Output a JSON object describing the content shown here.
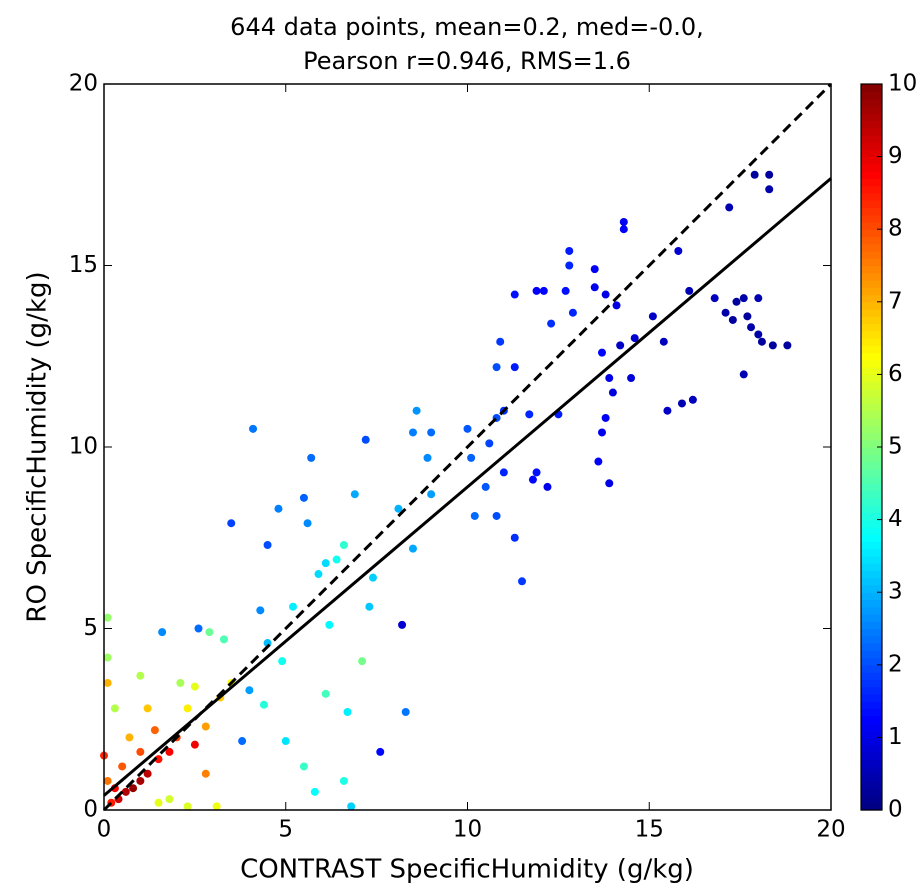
{
  "chart_data": {
    "type": "scatter",
    "title": [
      "644 data points, mean=0.2, med=-0.0,",
      "Pearson r=0.946,  RMS=1.6"
    ],
    "xlabel": "CONTRAST SpecificHumidity (g/kg)",
    "ylabel": "RO SpecificHumidity (g/kg)",
    "xlim": [
      0,
      20
    ],
    "ylim": [
      0,
      20
    ],
    "xticks": [
      0,
      5,
      10,
      15,
      20
    ],
    "yticks": [
      0,
      5,
      10,
      15,
      20
    ],
    "colormap": "jet",
    "colorbar": {
      "lim": [
        0,
        10
      ],
      "ticks": [
        0,
        1,
        2,
        3,
        4,
        5,
        6,
        7,
        8,
        9,
        10
      ]
    },
    "x": [
      17.2,
      17.9,
      18.3,
      18.3,
      16.8,
      17.1,
      17.3,
      17.4,
      17.6,
      17.7,
      17.8,
      18.0,
      18.0,
      18.1,
      18.4,
      18.8,
      17.6,
      16.1,
      16.2,
      15.9,
      15.5,
      15.4,
      15.1,
      14.6,
      14.5,
      14.2,
      14.1,
      14.3,
      14.3,
      15.8,
      13.5,
      13.5,
      13.8,
      13.7,
      13.9,
      14.0,
      13.8,
      13.7,
      13.9,
      13.6,
      12.8,
      12.8,
      12.7,
      12.9,
      12.3,
      12.1,
      11.9,
      12.5,
      12.2,
      11.9,
      11.8,
      11.7,
      11.5,
      11.3,
      11.3,
      10.9,
      10.8,
      11.0,
      11.0,
      10.8,
      10.6,
      10.5,
      10.8,
      10.1,
      10.2,
      10.0,
      11.3,
      9.0,
      8.6,
      8.5,
      8.9,
      9.0,
      8.5,
      8.1,
      8.2,
      8.3,
      7.6,
      7.2,
      6.9,
      7.3,
      7.4,
      6.6,
      6.4,
      6.1,
      5.7,
      5.5,
      5.6,
      5.9,
      5.2,
      4.8,
      4.5,
      4.1,
      3.5,
      4.3,
      4.5,
      3.3,
      4.0,
      3.8,
      4.4,
      5.0,
      5.5,
      5.8,
      6.1,
      6.7,
      6.8,
      6.6,
      7.1,
      6.2,
      4.9,
      2.6,
      1.6,
      2.9,
      2.5,
      2.3,
      3.2,
      3.5,
      2.8,
      2.0,
      1.8,
      1.5,
      1.2,
      1.0,
      0.8,
      0.6,
      0.4,
      0.3,
      0.2,
      0.5,
      1.0,
      1.4,
      0.7,
      0.3,
      0.1,
      0.1,
      0.1,
      1.0,
      1.8,
      1.5,
      2.3,
      3.1,
      2.8,
      1.2,
      2.1,
      0.0,
      0.1,
      2.5
    ],
    "y": [
      16.6,
      17.5,
      17.5,
      17.1,
      14.1,
      13.7,
      13.5,
      14.0,
      14.1,
      13.6,
      13.3,
      14.1,
      13.1,
      12.9,
      12.8,
      12.8,
      12.0,
      14.3,
      11.3,
      11.2,
      11.0,
      12.9,
      13.6,
      13.0,
      11.9,
      12.8,
      13.9,
      16.2,
      16.0,
      15.4,
      14.9,
      14.4,
      14.2,
      12.6,
      11.9,
      11.5,
      10.8,
      10.4,
      9.0,
      9.6,
      15.4,
      15.0,
      14.3,
      13.7,
      13.4,
      14.3,
      14.3,
      10.9,
      8.9,
      9.3,
      9.1,
      10.9,
      6.3,
      7.5,
      12.2,
      12.9,
      12.2,
      11.0,
      9.3,
      10.8,
      10.1,
      8.9,
      8.1,
      9.7,
      8.1,
      10.5,
      14.2,
      10.4,
      11.0,
      10.4,
      9.7,
      8.7,
      7.2,
      8.3,
      5.1,
      2.7,
      1.6,
      10.2,
      8.7,
      5.6,
      6.4,
      7.3,
      6.9,
      6.8,
      9.7,
      8.6,
      7.9,
      6.5,
      5.6,
      8.3,
      7.3,
      10.5,
      7.9,
      5.5,
      4.6,
      4.7,
      3.3,
      1.9,
      2.9,
      1.9,
      1.2,
      0.5,
      3.2,
      2.7,
      0.1,
      0.8,
      4.1,
      5.1,
      4.1,
      5.0,
      4.9,
      4.9,
      3.4,
      2.8,
      3.1,
      3.5,
      2.3,
      2.0,
      1.6,
      1.4,
      1.0,
      0.8,
      0.6,
      0.5,
      0.3,
      0.6,
      0.2,
      1.2,
      1.6,
      2.2,
      2.0,
      2.8,
      4.2,
      5.3,
      3.5,
      3.7,
      0.3,
      0.2,
      0.1,
      0.1,
      1.0,
      2.8,
      3.5,
      1.5,
      0.8,
      1.8
    ],
    "c": [
      0.5,
      0.3,
      0.3,
      0.4,
      0.6,
      0.4,
      0.3,
      0.3,
      0.4,
      0.3,
      0.4,
      0.5,
      0.4,
      0.3,
      0.3,
      0.3,
      0.5,
      0.5,
      0.6,
      0.5,
      0.7,
      0.6,
      0.7,
      0.8,
      0.9,
      0.7,
      1.0,
      1.1,
      1.2,
      0.8,
      1.2,
      1.1,
      1.0,
      1.3,
      1.0,
      0.9,
      1.2,
      1.1,
      1.0,
      1.2,
      1.5,
      1.6,
      1.4,
      1.6,
      1.7,
      1.3,
      1.2,
      1.5,
      1.1,
      1.4,
      1.3,
      1.6,
      1.8,
      1.7,
      1.5,
      1.8,
      2.0,
      1.7,
      1.6,
      2.0,
      1.9,
      2.1,
      2.0,
      2.2,
      2.3,
      2.1,
      1.4,
      2.3,
      2.7,
      2.5,
      2.6,
      2.8,
      2.9,
      3.0,
      0.8,
      2.4,
      1.3,
      2.0,
      2.9,
      3.2,
      3.3,
      4.2,
      3.9,
      3.4,
      2.3,
      2.2,
      2.6,
      3.4,
      3.6,
      2.5,
      2.0,
      2.4,
      1.9,
      2.6,
      3.1,
      4.5,
      2.8,
      2.3,
      4.1,
      3.5,
      4.3,
      3.8,
      4.4,
      3.6,
      3.3,
      4.0,
      4.9,
      3.7,
      3.9,
      2.3,
      2.6,
      4.8,
      6.0,
      6.4,
      6.8,
      6.2,
      7.2,
      8.2,
      8.8,
      8.6,
      9.4,
      9.6,
      9.8,
      9.5,
      9.2,
      8.8,
      8.5,
      7.9,
      8.0,
      7.8,
      7.0,
      5.5,
      5.3,
      5.2,
      7.0,
      5.5,
      5.8,
      6.0,
      5.9,
      6.1,
      7.5,
      6.8,
      5.4,
      8.4,
      7.6,
      8.9
    ],
    "lines": [
      {
        "style": "solid",
        "color": "#000000",
        "x": [
          0,
          20
        ],
        "y": [
          0.4,
          17.4
        ]
      },
      {
        "style": "dashed",
        "color": "#000000",
        "x": [
          0,
          20
        ],
        "y": [
          0,
          20
        ]
      }
    ]
  }
}
